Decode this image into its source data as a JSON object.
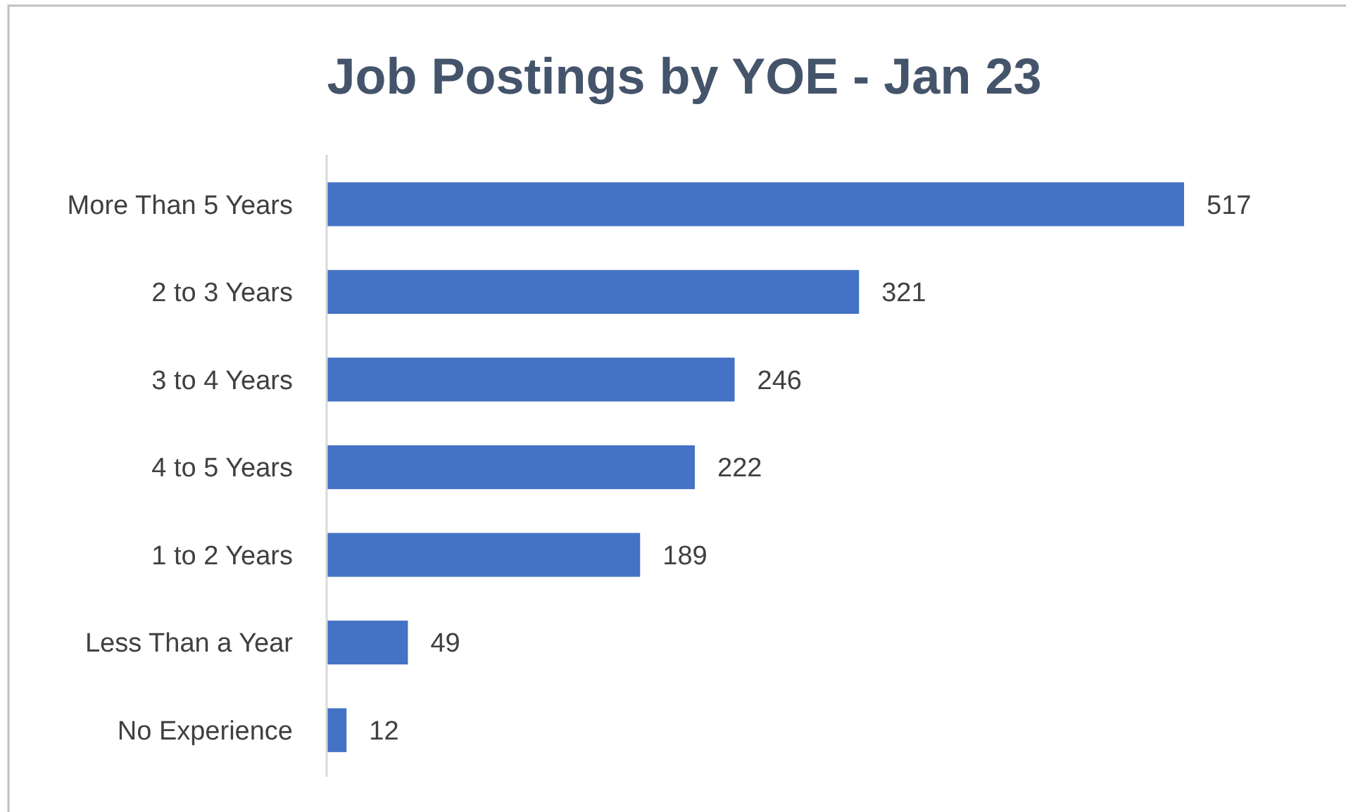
{
  "chart_data": {
    "type": "bar",
    "orientation": "horizontal",
    "title": "Job Postings by YOE - Jan 23",
    "categories": [
      "More Than 5 Years",
      "2 to 3 Years",
      "3 to 4 Years",
      "4 to 5 Years",
      "1 to 2 Years",
      "Less Than a Year",
      "No Experience"
    ],
    "values": [
      517,
      321,
      246,
      222,
      189,
      49,
      12
    ],
    "color": "#4472c4",
    "data_labels": true
  }
}
